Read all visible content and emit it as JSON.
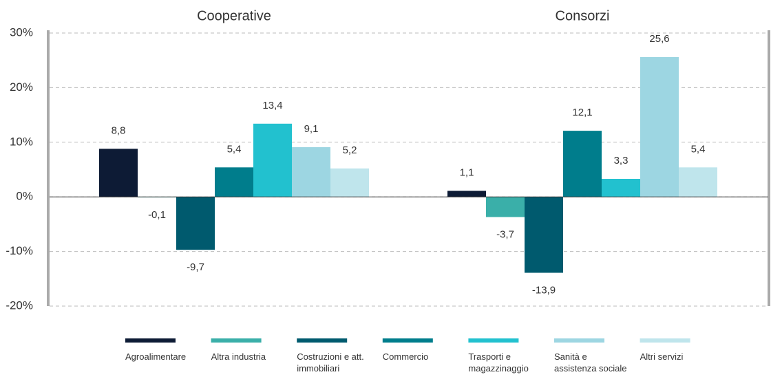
{
  "chart_data": {
    "type": "bar",
    "categories": [
      "Cooperative",
      "Consorzi"
    ],
    "series": [
      {
        "name": "Agroalimentare",
        "color": "#0d1b35",
        "values": [
          8.8,
          1.1
        ],
        "value_labels": [
          "8,8",
          "1,1"
        ]
      },
      {
        "name": "Altra industria",
        "color": "#3aafa9",
        "values": [
          -0.1,
          -3.7
        ],
        "value_labels": [
          "-0,1",
          "-3,7"
        ]
      },
      {
        "name": "Costruzioni e att. immobiliari",
        "color": "#005a6e",
        "values": [
          -9.7,
          -13.9
        ],
        "value_labels": [
          "-9,7",
          "-13,9"
        ]
      },
      {
        "name": "Commercio",
        "color": "#007d8c",
        "values": [
          5.4,
          12.1
        ],
        "value_labels": [
          "5,4",
          "12,1"
        ]
      },
      {
        "name": "Trasporti e magazzinaggio",
        "color": "#22c1cf",
        "values": [
          13.4,
          3.3
        ],
        "value_labels": [
          "13,4",
          "3,3"
        ]
      },
      {
        "name": "Sanità e assistenza sociale",
        "color": "#9dd6e2",
        "values": [
          9.1,
          25.6
        ],
        "value_labels": [
          "9,1",
          "25,6"
        ]
      },
      {
        "name": "Altri servizi",
        "color": "#bfe5ec",
        "values": [
          5.2,
          5.4
        ],
        "value_labels": [
          "5,2",
          "5,4"
        ]
      }
    ],
    "ylim": [
      -20,
      30
    ],
    "yticks": [
      {
        "value": -20,
        "label": "-20%"
      },
      {
        "value": -10,
        "label": "-10%"
      },
      {
        "value": 0,
        "label": "0%"
      },
      {
        "value": 10,
        "label": "10%"
      },
      {
        "value": 20,
        "label": "20%"
      },
      {
        "value": 30,
        "label": "30%"
      }
    ],
    "grid": true
  }
}
